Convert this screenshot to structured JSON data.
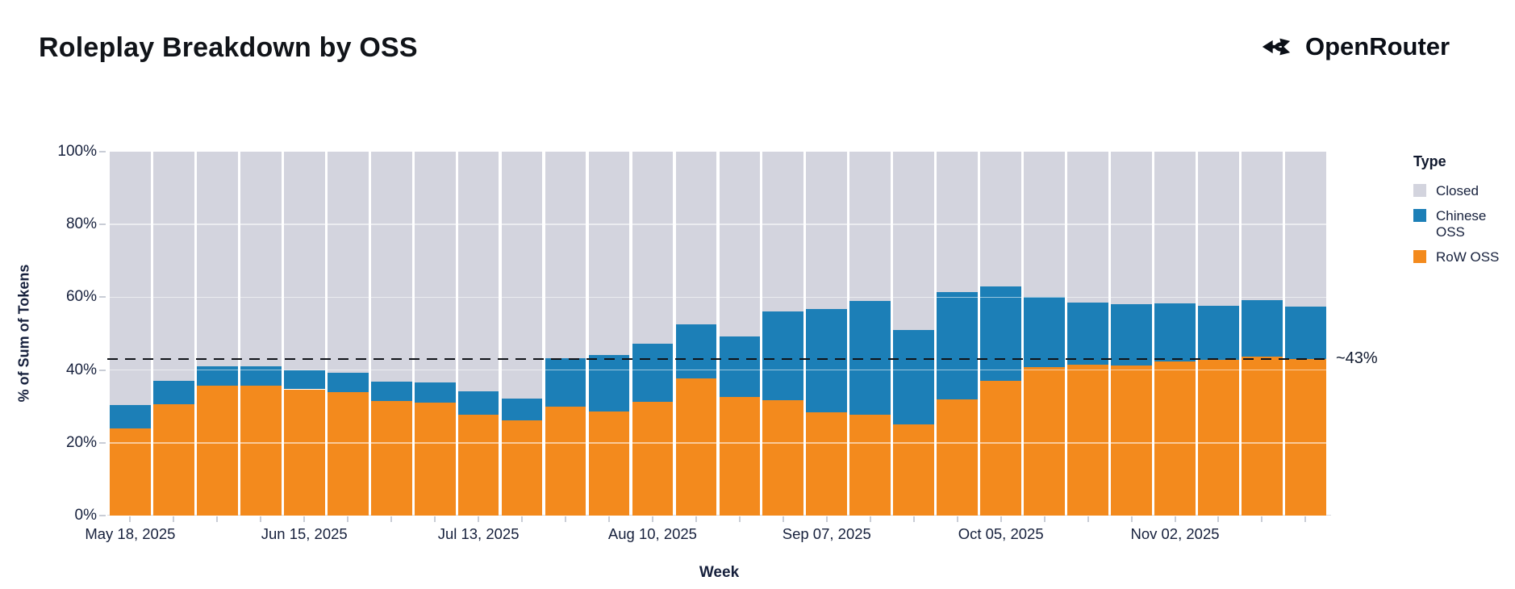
{
  "header": {
    "title": "Roleplay Breakdown by OSS",
    "brand": {
      "name": "OpenRouter"
    }
  },
  "chart_data": {
    "type": "bar",
    "stacked": true,
    "title": "Roleplay Breakdown by OSS",
    "xlabel": "Week",
    "ylabel": "% of Sum of Tokens",
    "ylim": [
      0,
      100
    ],
    "grid": "horizontal-white",
    "y_tick_labels": [
      "0%",
      "20%",
      "40%",
      "60%",
      "80%",
      "100%"
    ],
    "x_tick_labels_shown": [
      "May 18, 2025",
      "Jun 15, 2025",
      "Jul 13, 2025",
      "Aug 10, 2025",
      "Sep 07, 2025",
      "Oct 05, 2025",
      "Nov 02, 2025"
    ],
    "x_label_every": 4,
    "categories": [
      "May 18, 2025",
      "May 25, 2025",
      "Jun 01, 2025",
      "Jun 08, 2025",
      "Jun 15, 2025",
      "Jun 22, 2025",
      "Jun 29, 2025",
      "Jul 06, 2025",
      "Jul 13, 2025",
      "Jul 20, 2025",
      "Jul 27, 2025",
      "Aug 03, 2025",
      "Aug 10, 2025",
      "Aug 17, 2025",
      "Aug 24, 2025",
      "Aug 31, 2025",
      "Sep 07, 2025",
      "Sep 14, 2025",
      "Sep 21, 2025",
      "Sep 28, 2025",
      "Oct 05, 2025",
      "Oct 12, 2025",
      "Oct 19, 2025",
      "Oct 26, 2025",
      "Nov 02, 2025",
      "Nov 09, 2025",
      "Nov 16, 2025",
      "Nov 23, 2025"
    ],
    "series": [
      {
        "name": "RoW OSS",
        "color": "#f38a1d",
        "values": [
          24.0,
          30.6,
          35.6,
          35.7,
          34.7,
          34.0,
          31.4,
          31.0,
          27.7,
          26.2,
          29.9,
          28.7,
          31.3,
          37.8,
          32.6,
          31.6,
          28.4,
          27.7,
          25.1,
          31.9,
          37.1,
          40.8,
          41.5,
          41.2,
          42.3,
          42.7,
          43.6,
          43.0
        ]
      },
      {
        "name": "Chinese OSS",
        "color": "#1c7fb7",
        "values": [
          6.4,
          6.5,
          5.4,
          5.4,
          5.2,
          5.3,
          5.5,
          5.6,
          6.4,
          5.9,
          13.4,
          15.5,
          16.0,
          14.7,
          16.7,
          24.6,
          28.4,
          31.2,
          25.9,
          29.6,
          25.9,
          19.2,
          17.1,
          16.8,
          16.1,
          15.0,
          15.6,
          14.5
        ]
      },
      {
        "name": "Closed",
        "color": "#d3d4de",
        "values": [
          69.6,
          62.9,
          59.0,
          58.9,
          60.1,
          60.7,
          63.1,
          63.4,
          65.9,
          67.9,
          56.7,
          55.8,
          52.7,
          47.5,
          50.7,
          43.8,
          43.2,
          41.1,
          49.0,
          38.5,
          37.0,
          40.0,
          41.4,
          42.0,
          41.6,
          42.3,
          40.8,
          42.5
        ]
      }
    ],
    "reference_line": {
      "value": 43,
      "label": "~43%",
      "style": "dashed",
      "color": "#101318"
    },
    "legend": {
      "title": "Type",
      "position": "right",
      "entries": [
        {
          "label": "Closed",
          "color": "#d3d4de"
        },
        {
          "label": "Chinese OSS",
          "color": "#1c7fb7"
        },
        {
          "label": "RoW OSS",
          "color": "#f38a1d"
        }
      ]
    }
  }
}
